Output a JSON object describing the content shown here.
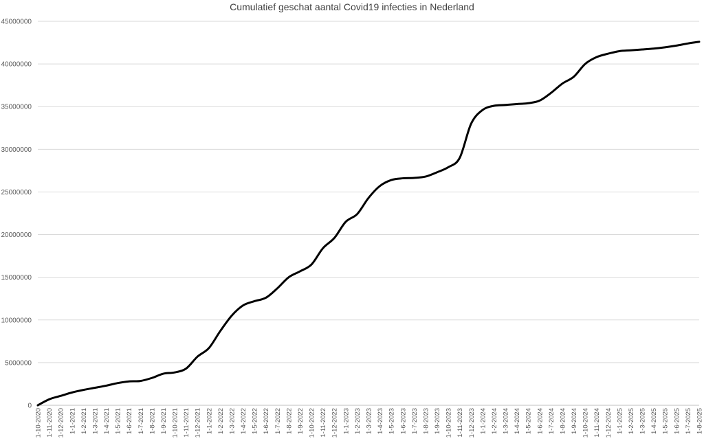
{
  "chart_data": {
    "type": "line",
    "title": "Cumulatief geschat aantal Covid19 infecties in Nederland",
    "xlabel": "",
    "ylabel": "",
    "ylim": [
      0,
      45000000
    ],
    "y_ticks": [
      "0",
      "5000000",
      "10000000",
      "15000000",
      "20000000",
      "25000000",
      "30000000",
      "35000000",
      "40000000",
      "45000000"
    ],
    "x_ticks": [
      "1-10-2020",
      "1-11-2020",
      "1-12-2020",
      "1-1-2021",
      "1-2-2021",
      "1-3-2021",
      "1-4-2021",
      "1-5-2021",
      "1-6-2021",
      "1-7-2021",
      "1-8-2021",
      "1-9-2021",
      "1-10-2021",
      "1-11-2021",
      "1-12-2021",
      "1-1-2022",
      "1-2-2022",
      "1-3-2022",
      "1-4-2022",
      "1-5-2022",
      "1-6-2022",
      "1-7-2022",
      "1-8-2022",
      "1-9-2022",
      "1-10-2022",
      "1-11-2022",
      "1-12-2022",
      "1-1-2023",
      "1-2-2023",
      "1-3-2023",
      "1-4-2023",
      "1-5-2023",
      "1-6-2023",
      "1-7-2023",
      "1-8-2023",
      "1-9-2023",
      "1-10-2023",
      "1-11-2023",
      "1-12-2023",
      "1-1-2024",
      "1-2-2024",
      "1-3-2024",
      "1-4-2024",
      "1-5-2024",
      "1-6-2024",
      "1-7-2024",
      "1-8-2024",
      "1-9-2024",
      "1-10-2024",
      "1-11-2024",
      "1-12-2024",
      "1-1-2025",
      "1-2-2025",
      "1-3-2025",
      "1-4-2025",
      "1-5-2025",
      "1-6-2025",
      "1-7-2025",
      "1-8-2025"
    ],
    "grid": true,
    "line_color": "#000000",
    "series": [
      {
        "points": [
          [
            "1-10-2020",
            0
          ],
          [
            "1-11-2020",
            700000
          ],
          [
            "1-12-2020",
            1100000
          ],
          [
            "1-1-2021",
            1500000
          ],
          [
            "1-2-2021",
            1800000
          ],
          [
            "1-3-2021",
            2050000
          ],
          [
            "1-4-2021",
            2300000
          ],
          [
            "1-5-2021",
            2600000
          ],
          [
            "1-6-2021",
            2800000
          ],
          [
            "1-7-2021",
            2850000
          ],
          [
            "1-8-2021",
            3200000
          ],
          [
            "1-9-2021",
            3700000
          ],
          [
            "1-10-2021",
            3850000
          ],
          [
            "1-11-2021",
            4300000
          ],
          [
            "1-12-2021",
            5700000
          ],
          [
            "1-1-2022",
            6700000
          ],
          [
            "1-2-2022",
            8700000
          ],
          [
            "1-3-2022",
            10500000
          ],
          [
            "1-4-2022",
            11700000
          ],
          [
            "1-5-2022",
            12200000
          ],
          [
            "1-6-2022",
            12600000
          ],
          [
            "1-7-2022",
            13700000
          ],
          [
            "1-8-2022",
            15000000
          ],
          [
            "1-9-2022",
            15700000
          ],
          [
            "1-10-2022",
            16500000
          ],
          [
            "1-11-2022",
            18400000
          ],
          [
            "1-12-2022",
            19600000
          ],
          [
            "1-1-2023",
            21500000
          ],
          [
            "1-2-2023",
            22400000
          ],
          [
            "1-3-2023",
            24300000
          ],
          [
            "1-4-2023",
            25700000
          ],
          [
            "1-5-2023",
            26400000
          ],
          [
            "1-6-2023",
            26600000
          ],
          [
            "1-7-2023",
            26650000
          ],
          [
            "1-8-2023",
            26800000
          ],
          [
            "1-9-2023",
            27300000
          ],
          [
            "1-10-2023",
            27900000
          ],
          [
            "1-11-2023",
            29000000
          ],
          [
            "1-12-2023",
            33000000
          ],
          [
            "1-1-2024",
            34600000
          ],
          [
            "1-2-2024",
            35100000
          ],
          [
            "1-3-2024",
            35200000
          ],
          [
            "1-4-2024",
            35300000
          ],
          [
            "1-5-2024",
            35400000
          ],
          [
            "1-6-2024",
            35700000
          ],
          [
            "1-7-2024",
            36600000
          ],
          [
            "1-8-2024",
            37700000
          ],
          [
            "1-9-2024",
            38500000
          ],
          [
            "1-10-2024",
            40000000
          ],
          [
            "1-11-2024",
            40800000
          ],
          [
            "1-12-2024",
            41200000
          ],
          [
            "1-1-2025",
            41500000
          ],
          [
            "1-2-2025",
            41600000
          ],
          [
            "1-3-2025",
            41700000
          ],
          [
            "1-4-2025",
            41800000
          ],
          [
            "1-5-2025",
            41950000
          ],
          [
            "1-6-2025",
            42150000
          ],
          [
            "1-7-2025",
            42400000
          ],
          [
            "1-8-2025",
            42600000
          ]
        ]
      }
    ]
  }
}
